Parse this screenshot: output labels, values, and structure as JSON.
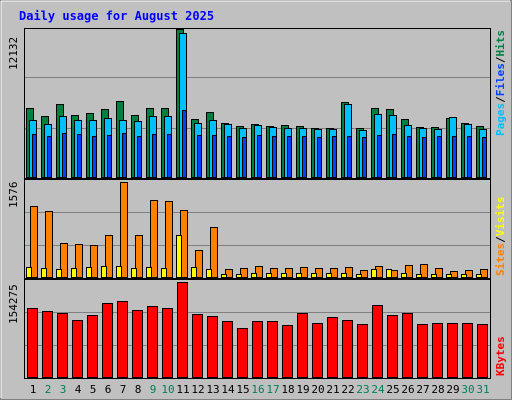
{
  "title": "Daily usage for August 2025",
  "colors": {
    "frame_bg": "#c0c0c0",
    "title": "#0000ff",
    "hits": "#008040",
    "files": "#0040ff",
    "pages": "#00c0ff",
    "visits": "#ffff00",
    "sites": "#ff8000",
    "kbytes": "#ff0000",
    "weekend_day": "#00805c",
    "weekday": "#000000"
  },
  "chart_data": [
    {
      "type": "bar",
      "panel": "hits-files-pages",
      "categories": [
        "1",
        "2",
        "3",
        "4",
        "5",
        "6",
        "7",
        "8",
        "9",
        "10",
        "11",
        "12",
        "13",
        "14",
        "15",
        "16",
        "17",
        "18",
        "19",
        "20",
        "21",
        "22",
        "23",
        "24",
        "25",
        "26",
        "27",
        "28",
        "29",
        "30",
        "31"
      ],
      "ymax_label": "12132",
      "ylim": [
        0,
        12132
      ],
      "series": [
        {
          "name": "Hits",
          "values": [
            5700,
            5050,
            6050,
            5100,
            5300,
            5650,
            6250,
            5150,
            5700,
            5700,
            12132,
            4800,
            5350,
            4450,
            4250,
            4400,
            4200,
            4300,
            4250,
            4100,
            4100,
            6150,
            4050,
            5700,
            5650,
            4800,
            4150,
            4150,
            4900,
            4450,
            4200
          ]
        },
        {
          "name": "Files",
          "values": [
            3600,
            3400,
            3650,
            3550,
            3450,
            3500,
            3700,
            3450,
            3550,
            3550,
            5500,
            3500,
            3500,
            3450,
            3350,
            3500,
            3450,
            3450,
            3450,
            3350,
            3400,
            3450,
            3350,
            3500,
            3600,
            3450,
            3350,
            3400,
            3450,
            3450,
            3350
          ]
        },
        {
          "name": "Pages",
          "values": [
            4700,
            4400,
            5050,
            4700,
            4700,
            4900,
            4750,
            4650,
            5050,
            5050,
            11800,
            4500,
            4700,
            4400,
            4100,
            4350,
            4150,
            4100,
            4050,
            4000,
            3950,
            6050,
            3900,
            5250,
            5100,
            4350,
            4050,
            3950,
            4950,
            4400,
            4000
          ]
        }
      ],
      "legend": [
        "Pages",
        "Files",
        "Hits"
      ]
    },
    {
      "type": "bar",
      "panel": "visits-sites",
      "categories": [
        "1",
        "2",
        "3",
        "4",
        "5",
        "6",
        "7",
        "8",
        "9",
        "10",
        "11",
        "12",
        "13",
        "14",
        "15",
        "16",
        "17",
        "18",
        "19",
        "20",
        "21",
        "22",
        "23",
        "24",
        "25",
        "26",
        "27",
        "28",
        "29",
        "30",
        "31"
      ],
      "ymax_label": "1576",
      "ylim": [
        0,
        1576
      ],
      "series": [
        {
          "name": "Visits",
          "values": [
            180,
            170,
            150,
            160,
            180,
            200,
            200,
            170,
            180,
            170,
            700,
            180,
            150,
            60,
            70,
            90,
            80,
            75,
            80,
            75,
            75,
            90,
            70,
            150,
            140,
            90,
            70,
            70,
            70,
            70,
            70
          ]
        },
        {
          "name": "Sites",
          "values": [
            1180,
            1100,
            570,
            550,
            540,
            700,
            1576,
            700,
            1280,
            1260,
            1120,
            460,
            830,
            140,
            170,
            190,
            160,
            170,
            180,
            170,
            170,
            180,
            130,
            190,
            130,
            220,
            230,
            160,
            120,
            130,
            140
          ]
        }
      ],
      "legend": [
        "Sites",
        "Visits"
      ]
    },
    {
      "type": "bar",
      "panel": "kbytes",
      "categories": [
        "1",
        "2",
        "3",
        "4",
        "5",
        "6",
        "7",
        "8",
        "9",
        "10",
        "11",
        "12",
        "13",
        "14",
        "15",
        "16",
        "17",
        "18",
        "19",
        "20",
        "21",
        "22",
        "23",
        "24",
        "25",
        "26",
        "27",
        "28",
        "29",
        "30",
        "31"
      ],
      "ymax_label": "154275",
      "ylim": [
        0,
        154275
      ],
      "series": [
        {
          "name": "KBytes",
          "values": [
            112000,
            107000,
            104000,
            94000,
            102000,
            121000,
            124000,
            110000,
            115000,
            113000,
            154275,
            103000,
            100000,
            92000,
            81000,
            92000,
            92000,
            85000,
            105000,
            88000,
            98000,
            94000,
            86000,
            117000,
            101000,
            105000,
            87000,
            88000,
            88000,
            88000,
            87000
          ]
        }
      ],
      "legend": [
        "KBytes"
      ]
    }
  ],
  "x_axis": {
    "labels": [
      "1",
      "2",
      "3",
      "4",
      "5",
      "6",
      "7",
      "8",
      "9",
      "10",
      "11",
      "12",
      "13",
      "14",
      "15",
      "16",
      "17",
      "18",
      "19",
      "20",
      "21",
      "22",
      "23",
      "24",
      "25",
      "26",
      "27",
      "28",
      "29",
      "30",
      "31"
    ],
    "weekend": [
      false,
      true,
      true,
      false,
      false,
      false,
      false,
      false,
      true,
      true,
      false,
      false,
      false,
      false,
      false,
      true,
      true,
      false,
      false,
      false,
      false,
      false,
      true,
      true,
      false,
      false,
      false,
      false,
      false,
      true,
      true
    ]
  }
}
